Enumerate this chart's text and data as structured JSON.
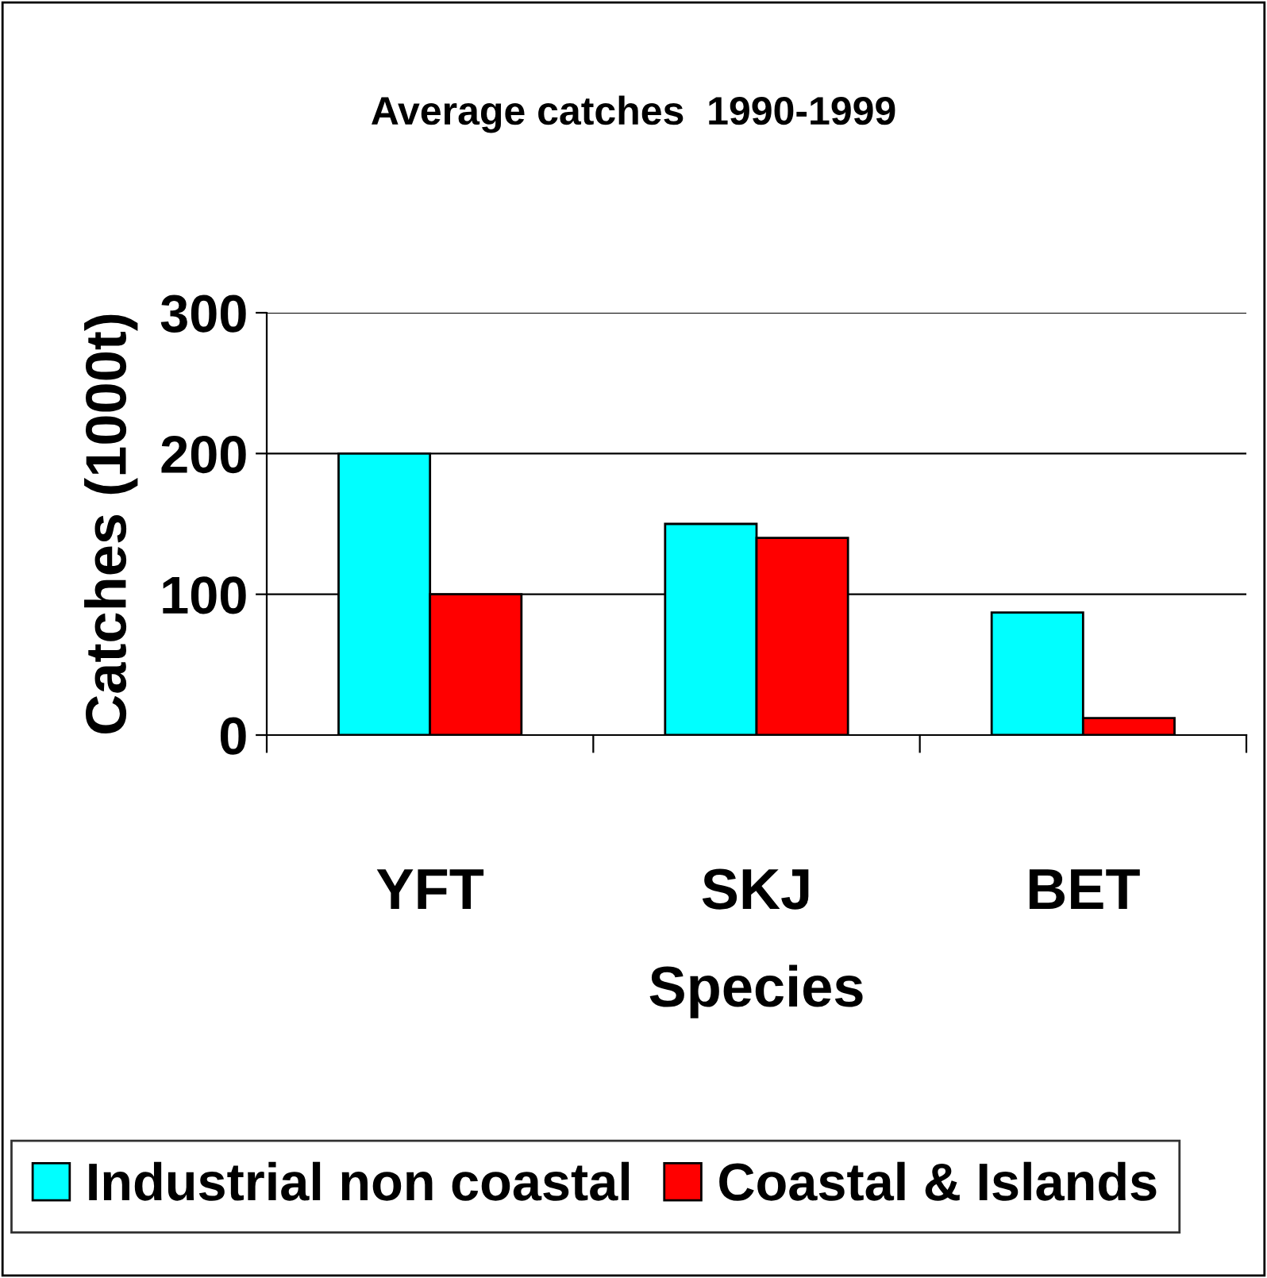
{
  "chart_data": {
    "type": "bar",
    "title": "Average catches  1990-1999",
    "xlabel": "Species",
    "ylabel": "Catches (1000t)",
    "categories": [
      "YFT",
      "SKJ",
      "BET"
    ],
    "series": [
      {
        "name": "Industrial non coastal",
        "color": "#00ffff",
        "values": [
          200,
          150,
          87
        ]
      },
      {
        "name": "Coastal & Islands",
        "color": "#ff0000",
        "values": [
          100,
          140,
          12
        ]
      }
    ],
    "ylim": [
      0,
      300
    ],
    "yticks": [
      0,
      100,
      200,
      300
    ],
    "grid": "y",
    "legend": "bottom"
  }
}
